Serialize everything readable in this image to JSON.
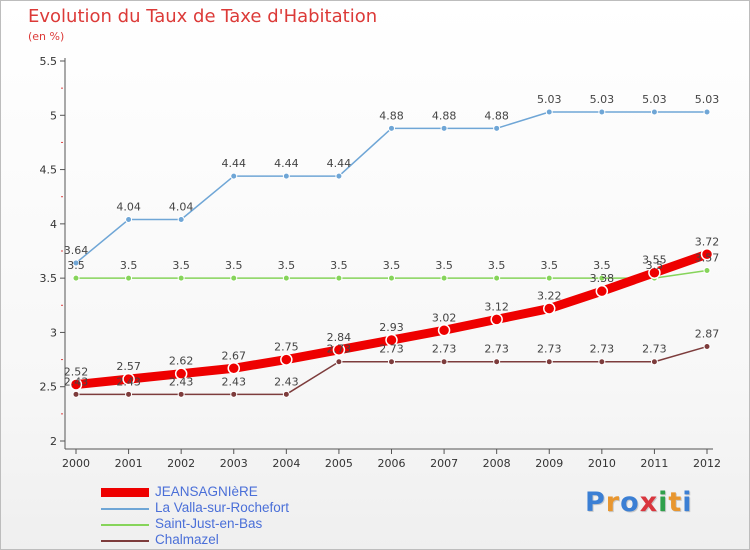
{
  "title": "Evolution du Taux de Taxe d'Habitation",
  "unit": "(en %)",
  "logo": {
    "letters": [
      "P",
      "r",
      "o",
      "x",
      "i",
      "t",
      "i"
    ],
    "colors": [
      "#3b7fd4",
      "#e8962f",
      "#3b7fd4",
      "#d9363e",
      "#2fa04b",
      "#e8962f",
      "#3b7fd4"
    ]
  },
  "chart_data": {
    "type": "line",
    "title": "Evolution du Taux de Taxe d'Habitation",
    "ylabel": "(en %)",
    "xlabel": "",
    "ylim": [
      2,
      5.5
    ],
    "y_ticks": [
      "2",
      "2.5",
      "3",
      "3.5",
      "4",
      "4.5",
      "5",
      "5.5"
    ],
    "categories": [
      "2000",
      "2001",
      "2002",
      "2003",
      "2004",
      "2005",
      "2006",
      "2007",
      "2008",
      "2009",
      "2010",
      "2011",
      "2012"
    ],
    "grid": false,
    "legend": "bottom-left",
    "series": [
      {
        "name": "JEANSAGNIèRE",
        "color": "#ee0000",
        "values": [
          2.52,
          2.57,
          2.62,
          2.67,
          2.75,
          2.84,
          2.93,
          3.02,
          3.12,
          3.22,
          3.38,
          3.55,
          3.72
        ],
        "labels": [
          "2.52",
          "2.57",
          "2.62",
          "2.67",
          "2.75",
          "2.84",
          "2.93",
          "3.02",
          "3.12",
          "3.22",
          "3.38",
          "3.55",
          "3.72"
        ]
      },
      {
        "name": "La Valla-sur-Rochefort",
        "color": "#6fa6d6",
        "values": [
          3.64,
          4.04,
          4.04,
          4.44,
          4.44,
          4.44,
          4.88,
          4.88,
          4.88,
          5.03,
          5.03,
          5.03,
          5.03
        ],
        "labels": [
          "3.64",
          "4.04",
          "4.04",
          "4.44",
          "4.44",
          "4.44",
          "4.88",
          "4.88",
          "4.88",
          "5.03",
          "5.03",
          "5.03",
          "5.03"
        ]
      },
      {
        "name": "Saint-Just-en-Bas",
        "color": "#86d45a",
        "values": [
          3.5,
          3.5,
          3.5,
          3.5,
          3.5,
          3.5,
          3.5,
          3.5,
          3.5,
          3.5,
          3.5,
          3.5,
          3.57
        ],
        "labels": [
          "3.5",
          "3.5",
          "3.5",
          "3.5",
          "3.5",
          "3.5",
          "3.5",
          "3.5",
          "3.5",
          "3.5",
          "3.5",
          "3.5",
          "3.57"
        ]
      },
      {
        "name": "Chalmazel",
        "color": "#7d3c3c",
        "values": [
          2.43,
          2.43,
          2.43,
          2.43,
          2.43,
          2.73,
          2.73,
          2.73,
          2.73,
          2.73,
          2.73,
          2.73,
          2.87
        ],
        "labels": [
          "2.43",
          "2.43",
          "2.43",
          "2.43",
          "2.43",
          "2.73",
          "2.73",
          "2.73",
          "2.73",
          "2.73",
          "2.73",
          "2.73",
          "2.87"
        ]
      }
    ]
  }
}
